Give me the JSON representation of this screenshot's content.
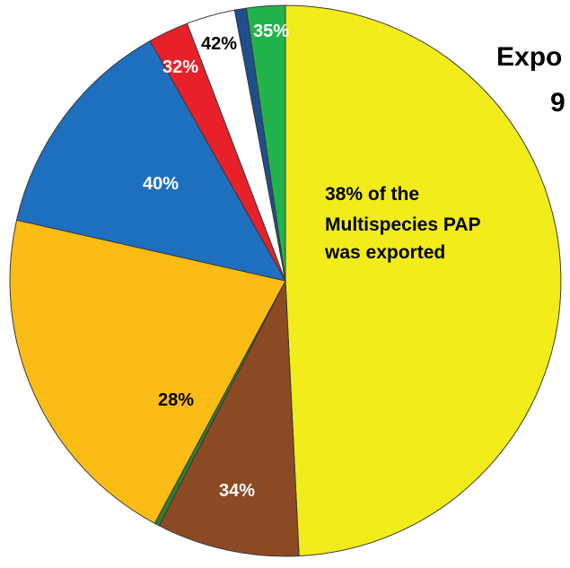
{
  "chart_data": {
    "type": "pie",
    "title": "",
    "slices": [
      {
        "value": 50.0,
        "color": "#f2ec1a",
        "label": ""
      },
      {
        "value": 8.5,
        "color": "#8b4a23",
        "label": "34%",
        "label_color": "#ffffff"
      },
      {
        "value": 0.3,
        "color": "#2e7d32",
        "label": ""
      },
      {
        "value": 21.0,
        "color": "#fbbc16",
        "label": "28%",
        "label_color": "#000000"
      },
      {
        "value": 13.5,
        "color": "#1f6fbf",
        "label": "40%",
        "label_color": "#ffffff"
      },
      {
        "value": 2.4,
        "color": "#e8202a",
        "label": "32%",
        "label_color": "#ffffff"
      },
      {
        "value": 2.9,
        "color": "#ffffff",
        "label": "42%",
        "label_color": "#000000"
      },
      {
        "value": 0.7,
        "color": "#1f4e8c",
        "label": ""
      },
      {
        "value": 2.3,
        "color": "#22b24c",
        "label": "35%",
        "label_color": "#ffffff"
      }
    ],
    "annotation": {
      "lines": [
        "38% of the",
        "Multispecies PAP",
        "was exported"
      ]
    },
    "side_title_lines": [
      "Expo",
      "9"
    ]
  }
}
